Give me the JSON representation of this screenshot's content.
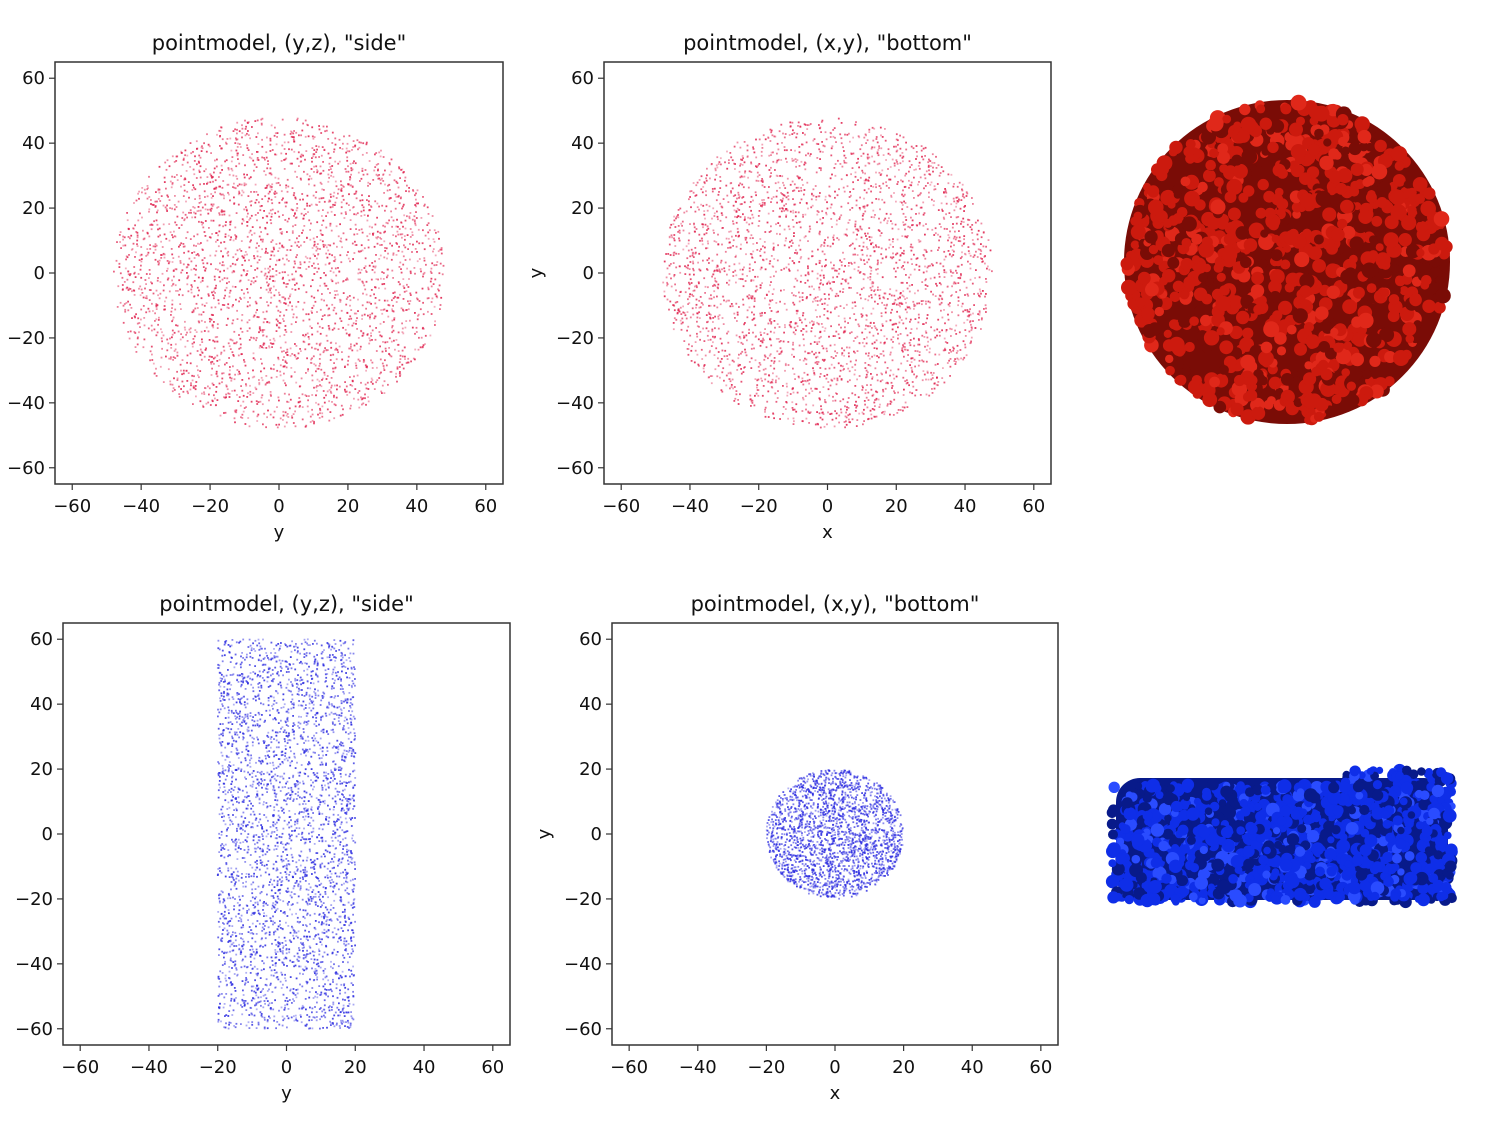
{
  "figure": {
    "panels": [
      {
        "title": "pointmodel, (y,z), \"side\"",
        "xlabel": "y",
        "ylabel": "",
        "point_color": "#e0224e"
      },
      {
        "title": "pointmodel, (x,y), \"bottom\"",
        "xlabel": "x",
        "ylabel": "y",
        "point_color": "#e0224e"
      },
      {
        "title": "pointmodel, (y,z), \"side\"",
        "xlabel": "y",
        "ylabel": "",
        "point_color": "#2b2be0"
      },
      {
        "title": "pointmodel, (x,y), \"bottom\"",
        "xlabel": "x",
        "ylabel": "y",
        "point_color": "#2b2be0"
      }
    ],
    "renders": [
      {
        "shape": "sphere",
        "color": "#cc1a0e",
        "shadow_color": "#7a0c06"
      },
      {
        "shape": "cylinder",
        "color": "#0f2ee8",
        "shadow_color": "#081a8a"
      }
    ]
  },
  "chart_data": [
    {
      "type": "scatter",
      "title": "pointmodel, (y,z), \"side\"",
      "xlabel": "y",
      "ylabel": "",
      "xlim": [
        -65,
        65
      ],
      "ylim": [
        -65,
        65
      ],
      "xticks": [
        -60,
        -40,
        -20,
        0,
        20,
        40,
        60
      ],
      "yticks": [
        -60,
        -40,
        -20,
        0,
        20,
        40,
        60
      ],
      "grid": false,
      "distribution": {
        "shape": "disk",
        "center": [
          0,
          0
        ],
        "radius": 48
      },
      "n_points": 3000,
      "color": "#e0224e"
    },
    {
      "type": "scatter",
      "title": "pointmodel, (x,y), \"bottom\"",
      "xlabel": "x",
      "ylabel": "y",
      "xlim": [
        -65,
        65
      ],
      "ylim": [
        -65,
        65
      ],
      "xticks": [
        -60,
        -40,
        -20,
        0,
        20,
        40,
        60
      ],
      "yticks": [
        -60,
        -40,
        -20,
        0,
        20,
        40,
        60
      ],
      "grid": false,
      "distribution": {
        "shape": "disk",
        "center": [
          0,
          0
        ],
        "radius": 48
      },
      "n_points": 3000,
      "color": "#e0224e"
    },
    {
      "type": "scatter",
      "title": "pointmodel, (y,z), \"side\"",
      "xlabel": "y",
      "ylabel": "",
      "xlim": [
        -65,
        65
      ],
      "ylim": [
        -65,
        65
      ],
      "xticks": [
        -60,
        -40,
        -20,
        0,
        20,
        40,
        60
      ],
      "yticks": [
        -60,
        -40,
        -20,
        0,
        20,
        40,
        60
      ],
      "grid": false,
      "distribution": {
        "shape": "rectangle",
        "x_range": [
          -20,
          20
        ],
        "y_range": [
          -60,
          60
        ]
      },
      "n_points": 3200,
      "color": "#2b2be0"
    },
    {
      "type": "scatter",
      "title": "pointmodel, (x,y), \"bottom\"",
      "xlabel": "x",
      "ylabel": "y",
      "xlim": [
        -65,
        65
      ],
      "ylim": [
        -65,
        65
      ],
      "xticks": [
        -60,
        -40,
        -20,
        0,
        20,
        40,
        60
      ],
      "yticks": [
        -60,
        -40,
        -20,
        0,
        20,
        40,
        60
      ],
      "grid": false,
      "distribution": {
        "shape": "disk",
        "center": [
          0,
          0
        ],
        "radius": 20
      },
      "n_points": 2200,
      "color": "#2b2be0"
    }
  ]
}
